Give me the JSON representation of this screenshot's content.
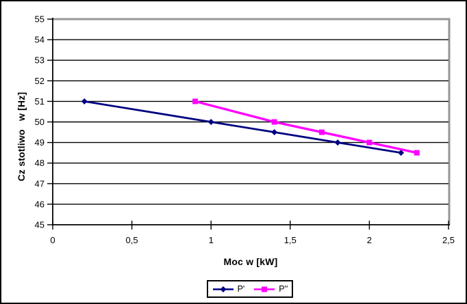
{
  "window": {
    "background": "#ffffff",
    "frame_border_color": "#000000"
  },
  "chart_data": {
    "type": "line",
    "title": "",
    "xlabel": "Moc w [kW]",
    "ylabel": "Cz stotliwo   w [Hz]",
    "xlim": [
      0,
      2.5
    ],
    "ylim": [
      45,
      55
    ],
    "x_ticks": [
      0,
      0.5,
      1,
      1.5,
      2,
      2.5
    ],
    "x_tick_labels": [
      "0",
      "0,5",
      "1",
      "1,5",
      "2",
      "2,5"
    ],
    "y_ticks": [
      45,
      46,
      47,
      48,
      49,
      50,
      51,
      52,
      53,
      54,
      55
    ],
    "y_tick_labels": [
      "45",
      "46",
      "47",
      "48",
      "49",
      "50",
      "51",
      "52",
      "53",
      "54",
      "55"
    ],
    "grid": "horizontal",
    "legend_position": "bottom-center",
    "colors": {
      "plot_border": "#969696",
      "axis": "#000000",
      "gridline": "#000000"
    },
    "series": [
      {
        "name": "P'",
        "color": "#000080",
        "marker": "diamond",
        "points": [
          [
            0.2,
            51
          ],
          [
            1,
            50
          ],
          [
            1.4,
            49.5
          ],
          [
            1.8,
            49
          ],
          [
            2.2,
            48.5
          ]
        ]
      },
      {
        "name": "P''",
        "color": "#FF00FF",
        "marker": "square",
        "points": [
          [
            0.9,
            51
          ],
          [
            1.4,
            50
          ],
          [
            1.7,
            49.5
          ],
          [
            2,
            49
          ],
          [
            2.3,
            48.5
          ]
        ]
      }
    ]
  }
}
